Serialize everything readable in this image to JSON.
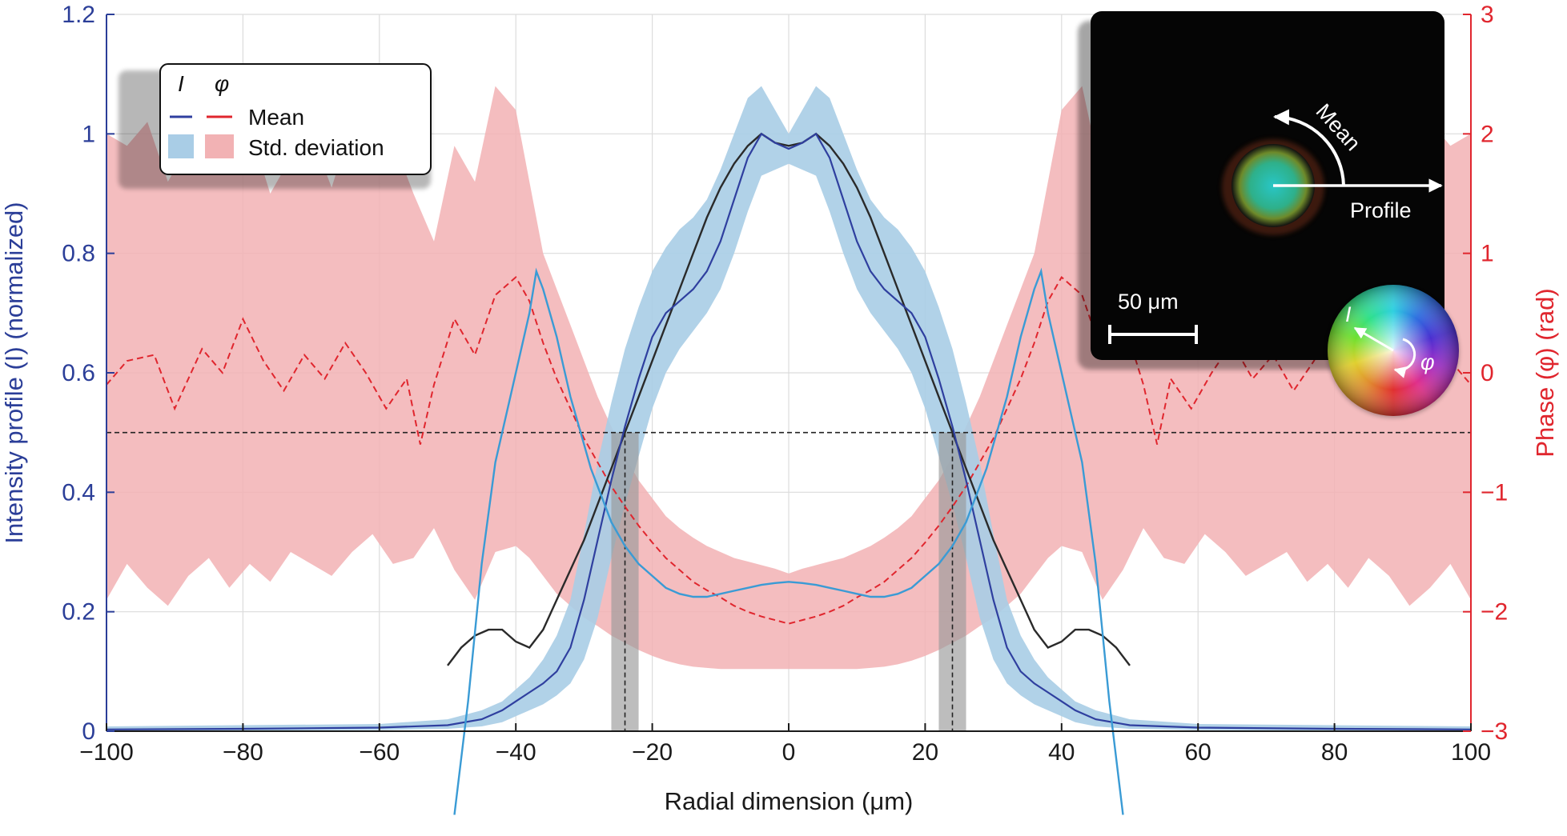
{
  "chart_data": {
    "type": "line",
    "xlabel": "Radial dimension (μm)",
    "ylabel_left": "Intensity profile (I) (normalized)",
    "ylabel_right": "Phase (φ) (rad)",
    "xlim": [
      -100,
      100
    ],
    "ylim_left": [
      0,
      1.2
    ],
    "ylim_right": [
      -3,
      3
    ],
    "x_ticks": [
      -100,
      -80,
      -60,
      -40,
      -20,
      0,
      20,
      40,
      60,
      80,
      100
    ],
    "x_tick_labels": [
      "−100",
      "−80",
      "−60",
      "−40",
      "−20",
      "0",
      "20",
      "40",
      "60",
      "80",
      "100"
    ],
    "y_left_ticks": [
      0,
      0.2,
      0.4,
      0.6,
      0.8,
      1,
      1.2
    ],
    "y_left_tick_labels": [
      "0",
      "0.2",
      "0.4",
      "0.6",
      "0.8",
      "1",
      "1.2"
    ],
    "y_right_ticks": [
      -3,
      -2,
      -1,
      0,
      1,
      2,
      3
    ],
    "y_right_tick_labels": [
      "−3",
      "−2",
      "−1",
      "0",
      "1",
      "2",
      "3"
    ],
    "grid": true,
    "legend": {
      "placement": "top-left",
      "header_intensity": "I",
      "header_phase": "φ",
      "mean_label": "Mean",
      "std_label": "Std. deviation"
    },
    "reference_line_y": 0.5,
    "fwhm_markers": [
      {
        "x": -24,
        "band": [
          -26,
          -22
        ]
      },
      {
        "x": 24,
        "band": [
          22,
          26
        ]
      }
    ],
    "series": [
      {
        "key": "intensity_mean",
        "axis": "left",
        "style": "solid",
        "color": "#2f3f9f",
        "x": [
          -100,
          -80,
          -60,
          -50,
          -45,
          -42,
          -40,
          -38,
          -36,
          -34,
          -32,
          -30,
          -28,
          -26,
          -24,
          -22,
          -20,
          -18,
          -16,
          -14,
          -12,
          -10,
          -8,
          -6,
          -4,
          -2,
          0,
          2,
          4,
          6,
          8,
          10,
          12,
          14,
          16,
          18,
          20,
          22,
          24,
          26,
          28,
          30,
          32,
          34,
          36,
          38,
          40,
          42,
          45,
          50,
          60,
          80,
          100
        ],
        "y": [
          0.003,
          0.004,
          0.006,
          0.01,
          0.02,
          0.035,
          0.05,
          0.065,
          0.08,
          0.1,
          0.14,
          0.22,
          0.32,
          0.42,
          0.51,
          0.59,
          0.66,
          0.7,
          0.72,
          0.74,
          0.77,
          0.82,
          0.89,
          0.96,
          1.0,
          0.985,
          0.975,
          0.985,
          1.0,
          0.96,
          0.89,
          0.82,
          0.77,
          0.74,
          0.72,
          0.7,
          0.66,
          0.59,
          0.51,
          0.42,
          0.32,
          0.22,
          0.14,
          0.1,
          0.08,
          0.065,
          0.05,
          0.035,
          0.02,
          0.01,
          0.006,
          0.004,
          0.003
        ]
      },
      {
        "key": "intensity_std_upper",
        "axis": "left",
        "x": [
          -100,
          -60,
          -50,
          -45,
          -42,
          -40,
          -38,
          -36,
          -34,
          -32,
          -30,
          -28,
          -26,
          -24,
          -22,
          -20,
          -18,
          -16,
          -14,
          -12,
          -10,
          -8,
          -6,
          -4,
          -2,
          0,
          2,
          4,
          6,
          8,
          10,
          12,
          14,
          16,
          18,
          20,
          22,
          24,
          26,
          28,
          30,
          32,
          34,
          36,
          38,
          40,
          42,
          45,
          50,
          60,
          100
        ],
        "y": [
          0.008,
          0.012,
          0.02,
          0.035,
          0.05,
          0.07,
          0.09,
          0.12,
          0.16,
          0.22,
          0.33,
          0.45,
          0.55,
          0.64,
          0.71,
          0.77,
          0.81,
          0.84,
          0.86,
          0.89,
          0.94,
          1.0,
          1.06,
          1.08,
          1.04,
          1.0,
          1.04,
          1.08,
          1.06,
          1.0,
          0.94,
          0.89,
          0.86,
          0.84,
          0.81,
          0.77,
          0.71,
          0.64,
          0.55,
          0.45,
          0.33,
          0.22,
          0.16,
          0.12,
          0.09,
          0.07,
          0.05,
          0.035,
          0.02,
          0.012,
          0.008
        ]
      },
      {
        "key": "intensity_std_lower",
        "axis": "left",
        "x": [
          -100,
          -60,
          -50,
          -45,
          -42,
          -40,
          -38,
          -36,
          -34,
          -32,
          -30,
          -28,
          -26,
          -24,
          -22,
          -20,
          -18,
          -16,
          -14,
          -12,
          -10,
          -8,
          -6,
          -4,
          -2,
          0,
          2,
          4,
          6,
          8,
          10,
          12,
          14,
          16,
          18,
          20,
          22,
          24,
          26,
          28,
          30,
          32,
          34,
          36,
          38,
          40,
          42,
          45,
          50,
          60,
          100
        ],
        "y": [
          0.0,
          0.002,
          0.004,
          0.008,
          0.015,
          0.025,
          0.035,
          0.045,
          0.06,
          0.08,
          0.12,
          0.19,
          0.29,
          0.38,
          0.46,
          0.54,
          0.6,
          0.64,
          0.67,
          0.7,
          0.74,
          0.8,
          0.87,
          0.93,
          0.94,
          0.95,
          0.94,
          0.93,
          0.87,
          0.8,
          0.74,
          0.7,
          0.67,
          0.64,
          0.6,
          0.54,
          0.46,
          0.38,
          0.29,
          0.19,
          0.12,
          0.08,
          0.06,
          0.045,
          0.035,
          0.025,
          0.015,
          0.008,
          0.004,
          0.002,
          0.0
        ]
      },
      {
        "key": "phase_mean",
        "axis": "right",
        "style": "dashed",
        "color": "#e0262e",
        "x": [
          -100,
          -97,
          -93,
          -90,
          -86,
          -83,
          -80,
          -77,
          -74,
          -71,
          -68,
          -65,
          -62,
          -59,
          -56,
          -54,
          -52,
          -49,
          -46,
          -43,
          -40,
          -38,
          -36,
          -34,
          -32,
          -30,
          -28,
          -26,
          -24,
          -22,
          -20,
          -18,
          -16,
          -14,
          -12,
          -10,
          -8,
          -6,
          -4,
          -2,
          0,
          2,
          4,
          6,
          8,
          10,
          12,
          14,
          16,
          18,
          20,
          22,
          24,
          26,
          28,
          30,
          32,
          34,
          36,
          38,
          40,
          43,
          46,
          49,
          52,
          54,
          56,
          59,
          62,
          65,
          68,
          71,
          74,
          77,
          80,
          83,
          86,
          90,
          93,
          97,
          100
        ],
        "y": [
          -0.1,
          0.1,
          0.15,
          -0.3,
          0.2,
          0.0,
          0.45,
          0.1,
          -0.15,
          0.15,
          -0.05,
          0.25,
          0.0,
          -0.3,
          -0.05,
          -0.6,
          -0.1,
          0.45,
          0.15,
          0.65,
          0.8,
          0.6,
          0.25,
          -0.05,
          -0.3,
          -0.55,
          -0.75,
          -0.95,
          -1.12,
          -1.28,
          -1.42,
          -1.55,
          -1.65,
          -1.75,
          -1.82,
          -1.88,
          -1.95,
          -2.0,
          -2.04,
          -2.07,
          -2.1,
          -2.07,
          -2.04,
          -2.0,
          -1.95,
          -1.88,
          -1.82,
          -1.75,
          -1.65,
          -1.55,
          -1.42,
          -1.28,
          -1.12,
          -0.95,
          -0.75,
          -0.55,
          -0.3,
          -0.05,
          0.25,
          0.6,
          0.8,
          0.65,
          0.15,
          0.45,
          -0.1,
          -0.6,
          -0.05,
          -0.3,
          0.0,
          0.25,
          -0.05,
          0.15,
          -0.15,
          0.1,
          0.45,
          0.0,
          0.2,
          -0.3,
          0.15,
          0.1,
          -0.1
        ]
      },
      {
        "key": "phase_std_upper",
        "axis": "right",
        "x": [
          -100,
          -97,
          -94,
          -91,
          -88,
          -85,
          -82,
          -79,
          -76,
          -73,
          -70,
          -67,
          -64,
          -61,
          -58,
          -55,
          -52,
          -49,
          -46,
          -43,
          -40,
          -38,
          -36,
          -34,
          -32,
          -30,
          -28,
          -26,
          -24,
          -22,
          -20,
          -18,
          -16,
          -14,
          -12,
          -10,
          -8,
          -6,
          -4,
          -2,
          0,
          2,
          4,
          6,
          8,
          10,
          12,
          14,
          16,
          18,
          20,
          22,
          24,
          26,
          28,
          30,
          32,
          34,
          36,
          38,
          40,
          43,
          46,
          49,
          52,
          55,
          58,
          61,
          64,
          67,
          70,
          73,
          76,
          79,
          82,
          85,
          88,
          91,
          94,
          97,
          100
        ],
        "y": [
          2.0,
          1.9,
          2.1,
          1.6,
          1.9,
          2.2,
          1.75,
          2.05,
          1.5,
          1.8,
          2.0,
          1.55,
          2.1,
          1.7,
          1.95,
          1.5,
          1.1,
          1.9,
          1.6,
          2.4,
          2.2,
          1.6,
          1.0,
          0.7,
          0.4,
          0.1,
          -0.2,
          -0.45,
          -0.7,
          -0.9,
          -1.05,
          -1.2,
          -1.3,
          -1.38,
          -1.45,
          -1.5,
          -1.55,
          -1.58,
          -1.61,
          -1.64,
          -1.68,
          -1.64,
          -1.61,
          -1.58,
          -1.55,
          -1.5,
          -1.45,
          -1.38,
          -1.3,
          -1.2,
          -1.05,
          -0.9,
          -0.7,
          -0.45,
          -0.2,
          0.1,
          0.4,
          0.7,
          1.0,
          1.6,
          2.2,
          2.4,
          1.6,
          1.9,
          1.1,
          1.5,
          1.95,
          1.7,
          2.1,
          1.55,
          2.0,
          1.8,
          1.5,
          2.05,
          1.75,
          2.2,
          1.9,
          1.6,
          2.1,
          1.9,
          2.0
        ]
      },
      {
        "key": "phase_std_lower",
        "axis": "right",
        "x": [
          -100,
          -97,
          -94,
          -91,
          -88,
          -85,
          -82,
          -79,
          -76,
          -73,
          -70,
          -67,
          -64,
          -61,
          -58,
          -55,
          -52,
          -49,
          -46,
          -43,
          -40,
          -38,
          -36,
          -34,
          -32,
          -30,
          -28,
          -26,
          -24,
          -22,
          -20,
          -18,
          -16,
          -14,
          -12,
          -10,
          -8,
          -6,
          -4,
          -2,
          0,
          2,
          4,
          6,
          8,
          10,
          12,
          14,
          16,
          18,
          20,
          22,
          24,
          26,
          28,
          30,
          32,
          34,
          36,
          38,
          40,
          43,
          46,
          49,
          52,
          55,
          58,
          61,
          64,
          67,
          70,
          73,
          76,
          79,
          82,
          85,
          88,
          91,
          94,
          97,
          100
        ],
        "y": [
          -1.9,
          -1.6,
          -1.8,
          -1.95,
          -1.7,
          -1.55,
          -1.8,
          -1.6,
          -1.75,
          -1.5,
          -1.6,
          -1.7,
          -1.5,
          -1.35,
          -1.6,
          -1.55,
          -1.3,
          -1.65,
          -1.9,
          -1.5,
          -1.45,
          -1.55,
          -1.7,
          -1.85,
          -1.95,
          -2.05,
          -2.12,
          -2.2,
          -2.26,
          -2.32,
          -2.37,
          -2.41,
          -2.44,
          -2.46,
          -2.47,
          -2.48,
          -2.48,
          -2.48,
          -2.48,
          -2.48,
          -2.48,
          -2.48,
          -2.48,
          -2.48,
          -2.48,
          -2.48,
          -2.47,
          -2.46,
          -2.44,
          -2.41,
          -2.37,
          -2.32,
          -2.26,
          -2.2,
          -2.12,
          -2.05,
          -1.95,
          -1.85,
          -1.7,
          -1.55,
          -1.45,
          -1.5,
          -1.9,
          -1.65,
          -1.3,
          -1.55,
          -1.6,
          -1.35,
          -1.5,
          -1.7,
          -1.6,
          -1.5,
          -1.75,
          -1.6,
          -1.8,
          -1.55,
          -1.7,
          -1.95,
          -1.8,
          -1.6,
          -1.9
        ]
      },
      {
        "key": "light_blue_profile",
        "axis": "left",
        "style": "solid",
        "color": "#3a9bd5",
        "x": [
          -49,
          -47,
          -45,
          -43,
          -41,
          -40,
          -39,
          -38,
          -37,
          -36,
          -35,
          -34,
          -33,
          -32,
          -31,
          -30,
          -29,
          -28,
          -27,
          -26,
          -25,
          -24,
          -22,
          -20,
          -18,
          -16,
          -14,
          -12,
          -10,
          -8,
          -6,
          -4,
          -2,
          0,
          2,
          4,
          6,
          8,
          10,
          12,
          14,
          16,
          18,
          20,
          22,
          24,
          25,
          26,
          27,
          28,
          29,
          30,
          31,
          32,
          33,
          34,
          35,
          36,
          37,
          38,
          39,
          40,
          41,
          43,
          45,
          47,
          49
        ],
        "y": [
          -0.14,
          0.05,
          0.28,
          0.45,
          0.55,
          0.6,
          0.65,
          0.7,
          0.77,
          0.74,
          0.7,
          0.66,
          0.61,
          0.56,
          0.52,
          0.48,
          0.44,
          0.41,
          0.38,
          0.35,
          0.33,
          0.31,
          0.28,
          0.26,
          0.24,
          0.23,
          0.225,
          0.225,
          0.23,
          0.235,
          0.24,
          0.245,
          0.248,
          0.25,
          0.248,
          0.245,
          0.24,
          0.235,
          0.23,
          0.225,
          0.225,
          0.23,
          0.24,
          0.26,
          0.28,
          0.31,
          0.33,
          0.35,
          0.38,
          0.41,
          0.44,
          0.48,
          0.52,
          0.56,
          0.61,
          0.66,
          0.7,
          0.74,
          0.77,
          0.7,
          0.65,
          0.6,
          0.55,
          0.45,
          0.28,
          0.05,
          -0.14
        ]
      },
      {
        "key": "black_profile",
        "axis": "left",
        "style": "solid",
        "color": "#2a2a2a",
        "x": [
          -50,
          -48,
          -46,
          -44,
          -42,
          -40,
          -38,
          -36,
          -34,
          -32,
          -30,
          -28,
          -26,
          -24,
          -22,
          -20,
          -18,
          -16,
          -14,
          -12,
          -10,
          -8,
          -6,
          -4,
          -2,
          0,
          2,
          4,
          6,
          8,
          10,
          12,
          14,
          16,
          18,
          20,
          22,
          24,
          26,
          28,
          30,
          32,
          34,
          36,
          38,
          40,
          42,
          44,
          46,
          48,
          50
        ],
        "y": [
          0.11,
          0.14,
          0.16,
          0.17,
          0.17,
          0.15,
          0.14,
          0.17,
          0.22,
          0.27,
          0.32,
          0.38,
          0.44,
          0.5,
          0.56,
          0.62,
          0.68,
          0.74,
          0.8,
          0.86,
          0.91,
          0.95,
          0.98,
          1.0,
          0.985,
          0.98,
          0.985,
          1.0,
          0.98,
          0.95,
          0.91,
          0.86,
          0.8,
          0.74,
          0.68,
          0.62,
          0.56,
          0.5,
          0.44,
          0.38,
          0.32,
          0.27,
          0.22,
          0.17,
          0.14,
          0.15,
          0.17,
          0.17,
          0.16,
          0.14,
          0.11
        ]
      }
    ],
    "inset": {
      "scale_bar_label": "50 μm",
      "arrow_mean_label": "Mean",
      "arrow_profile_label": "Profile",
      "wheel_intensity_label": "I",
      "wheel_phase_label": "φ"
    }
  }
}
